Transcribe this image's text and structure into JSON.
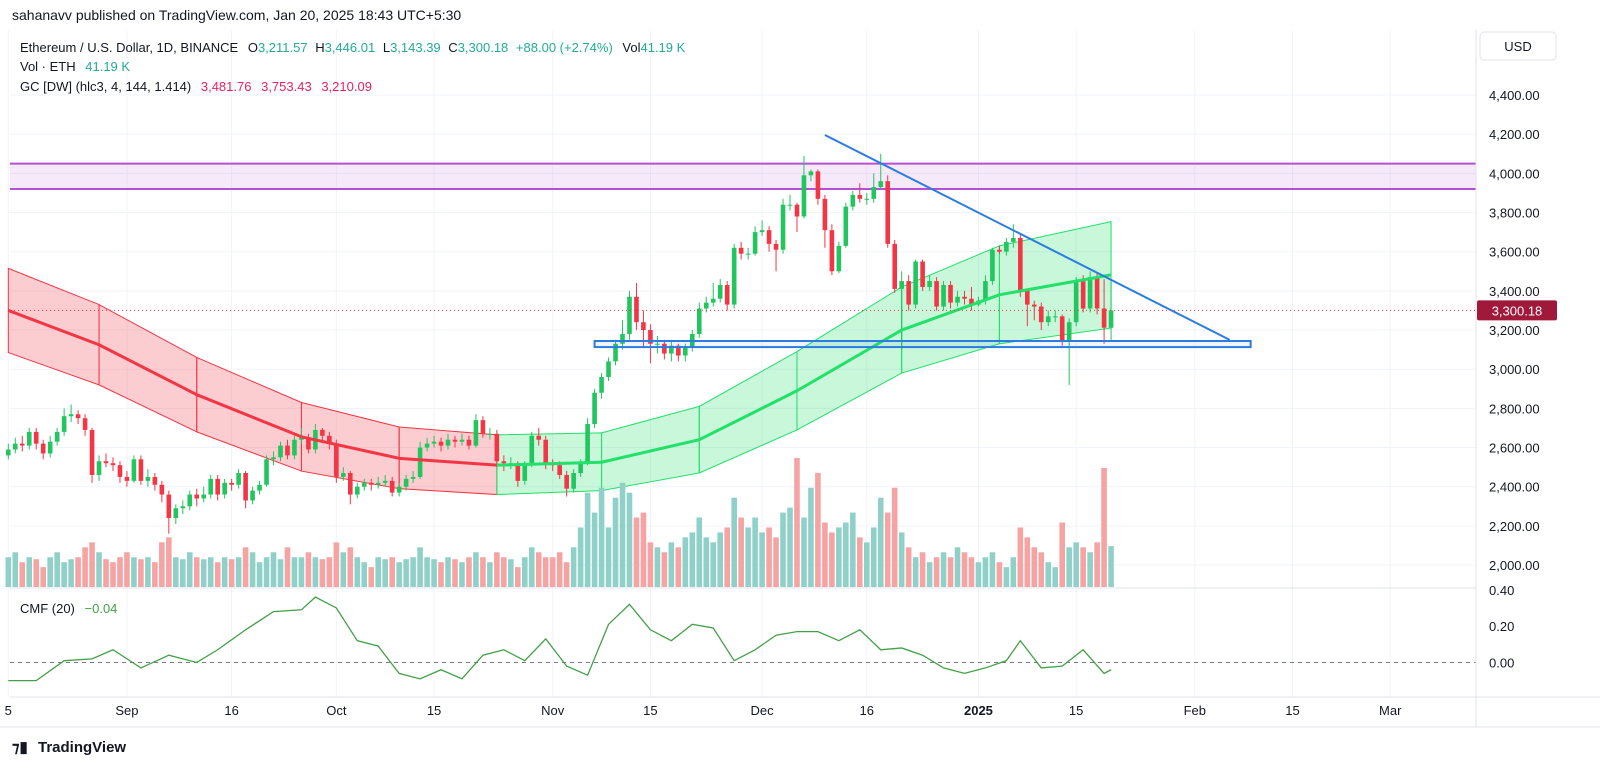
{
  "publisher": "sahanavv published on TradingView.com, Jan 20, 2025 18:43 UTC+5:30",
  "footer": "TradingView",
  "currency": "USD",
  "chart_data": {
    "type": "candlestick",
    "symbol": "Ethereum / U.S. Dollar, 1D, BINANCE",
    "ohlc_legend": [
      [
        "O",
        "3,211.57"
      ],
      [
        "H",
        "3,446.01"
      ],
      [
        "L",
        "3,143.39"
      ],
      [
        "C",
        "3,300.18"
      ]
    ],
    "change": "+88.00 (+2.74%)",
    "vol_key": "Vol",
    "vol_value": "41.19 K",
    "volume_title": "Vol · ETH",
    "volume_label": "41.19 K",
    "gc_title": "GC [DW] (hlc3, 4, 144, 1.414)",
    "gc_labels": [
      "3,481.76",
      "3,753.43",
      "3,210.09"
    ],
    "last_price_label": "3,300.18",
    "colors": {
      "up": "#22c55e",
      "down": "#f23645",
      "vol_up": "#8fd1c8",
      "vol_down": "#f5a3a3",
      "band_down": "#f23645",
      "band_up": "#22e06a",
      "zone": "#b44fd6",
      "drawing": "#2d7be0",
      "cmf": "#43a047",
      "legend_up": "#22ab94",
      "gc": "#e91e63"
    },
    "xlim": [
      0,
      210
    ],
    "xticks": [
      {
        "value": 0,
        "label": "5"
      },
      {
        "value": 17,
        "label": "Sep"
      },
      {
        "value": 32,
        "label": "16"
      },
      {
        "value": 47,
        "label": "Oct"
      },
      {
        "value": 61,
        "label": "15"
      },
      {
        "value": 78,
        "label": "Nov"
      },
      {
        "value": 92,
        "label": "15"
      },
      {
        "value": 108,
        "label": "Dec"
      },
      {
        "value": 123,
        "label": "16"
      },
      {
        "value": 139,
        "label": "2025"
      },
      {
        "value": 153,
        "label": "15"
      },
      {
        "value": 170,
        "label": "Feb"
      },
      {
        "value": 184,
        "label": "15"
      },
      {
        "value": 198,
        "label": "Mar"
      }
    ],
    "ylim": [
      1888,
      4732
    ],
    "yticks": [
      {
        "value": 2000,
        "label": "2,000.00"
      },
      {
        "value": 2200,
        "label": "2,200.00"
      },
      {
        "value": 2400,
        "label": "2,400.00"
      },
      {
        "value": 2600,
        "label": "2,600.00"
      },
      {
        "value": 2800,
        "label": "2,800.00"
      },
      {
        "value": 3000,
        "label": "3,000.00"
      },
      {
        "value": 3200,
        "label": "3,200.00"
      },
      {
        "value": 3400,
        "label": "3,400.00"
      },
      {
        "value": 3600,
        "label": "3,600.00"
      },
      {
        "value": 3800,
        "label": "3,800.00"
      },
      {
        "value": 4000,
        "label": "4,000.00"
      },
      {
        "value": 4200,
        "label": "4,200.00"
      },
      {
        "value": 4400,
        "label": "4,400.00"
      }
    ],
    "ohlc": [
      [
        2560,
        2620,
        2540,
        2590
      ],
      [
        2590,
        2650,
        2570,
        2620
      ],
      [
        2620,
        2660,
        2580,
        2610
      ],
      [
        2610,
        2700,
        2590,
        2680
      ],
      [
        2680,
        2700,
        2590,
        2620
      ],
      [
        2620,
        2640,
        2540,
        2570
      ],
      [
        2570,
        2660,
        2550,
        2630
      ],
      [
        2630,
        2700,
        2610,
        2680
      ],
      [
        2680,
        2800,
        2660,
        2760
      ],
      [
        2760,
        2820,
        2730,
        2770
      ],
      [
        2770,
        2790,
        2720,
        2750
      ],
      [
        2750,
        2770,
        2660,
        2690
      ],
      [
        2690,
        2700,
        2420,
        2460
      ],
      [
        2460,
        2560,
        2430,
        2530
      ],
      [
        2530,
        2570,
        2500,
        2520
      ],
      [
        2520,
        2550,
        2480,
        2510
      ],
      [
        2510,
        2530,
        2420,
        2450
      ],
      [
        2450,
        2480,
        2400,
        2430
      ],
      [
        2430,
        2560,
        2420,
        2540
      ],
      [
        2540,
        2560,
        2410,
        2430
      ],
      [
        2430,
        2490,
        2400,
        2450
      ],
      [
        2450,
        2470,
        2380,
        2410
      ],
      [
        2410,
        2430,
        2320,
        2360
      ],
      [
        2360,
        2380,
        2160,
        2240
      ],
      [
        2240,
        2310,
        2210,
        2290
      ],
      [
        2290,
        2330,
        2260,
        2300
      ],
      [
        2300,
        2380,
        2280,
        2360
      ],
      [
        2360,
        2390,
        2300,
        2340
      ],
      [
        2340,
        2400,
        2320,
        2360
      ],
      [
        2360,
        2460,
        2340,
        2440
      ],
      [
        2440,
        2460,
        2330,
        2360
      ],
      [
        2360,
        2440,
        2340,
        2420
      ],
      [
        2420,
        2440,
        2380,
        2410
      ],
      [
        2410,
        2490,
        2390,
        2470
      ],
      [
        2470,
        2480,
        2290,
        2330
      ],
      [
        2330,
        2400,
        2310,
        2380
      ],
      [
        2380,
        2430,
        2360,
        2410
      ],
      [
        2410,
        2560,
        2400,
        2540
      ],
      [
        2540,
        2580,
        2510,
        2550
      ],
      [
        2550,
        2630,
        2530,
        2610
      ],
      [
        2610,
        2640,
        2540,
        2560
      ],
      [
        2560,
        2660,
        2540,
        2640
      ],
      [
        2640,
        2700,
        2620,
        2650
      ],
      [
        2650,
        2670,
        2570,
        2590
      ],
      [
        2590,
        2720,
        2570,
        2690
      ],
      [
        2690,
        2700,
        2630,
        2660
      ],
      [
        2660,
        2680,
        2590,
        2620
      ],
      [
        2620,
        2640,
        2420,
        2450
      ],
      [
        2450,
        2500,
        2430,
        2470
      ],
      [
        2470,
        2480,
        2310,
        2360
      ],
      [
        2360,
        2420,
        2340,
        2400
      ],
      [
        2400,
        2440,
        2380,
        2420
      ],
      [
        2420,
        2440,
        2380,
        2410
      ],
      [
        2410,
        2450,
        2390,
        2420
      ],
      [
        2420,
        2460,
        2400,
        2430
      ],
      [
        2430,
        2450,
        2350,
        2370
      ],
      [
        2370,
        2420,
        2350,
        2400
      ],
      [
        2400,
        2460,
        2380,
        2440
      ],
      [
        2440,
        2480,
        2420,
        2450
      ],
      [
        2450,
        2630,
        2440,
        2600
      ],
      [
        2600,
        2650,
        2580,
        2620
      ],
      [
        2620,
        2660,
        2600,
        2630
      ],
      [
        2630,
        2650,
        2580,
        2610
      ],
      [
        2610,
        2670,
        2590,
        2640
      ],
      [
        2640,
        2660,
        2600,
        2630
      ],
      [
        2630,
        2670,
        2610,
        2640
      ],
      [
        2640,
        2660,
        2590,
        2610
      ],
      [
        2610,
        2770,
        2600,
        2740
      ],
      [
        2740,
        2760,
        2650,
        2670
      ],
      [
        2670,
        2700,
        2640,
        2670
      ],
      [
        2670,
        2690,
        2500,
        2530
      ],
      [
        2530,
        2560,
        2480,
        2520
      ],
      [
        2520,
        2550,
        2490,
        2520
      ],
      [
        2520,
        2530,
        2400,
        2430
      ],
      [
        2430,
        2530,
        2410,
        2510
      ],
      [
        2510,
        2680,
        2500,
        2660
      ],
      [
        2660,
        2700,
        2610,
        2640
      ],
      [
        2640,
        2660,
        2490,
        2520
      ],
      [
        2520,
        2540,
        2480,
        2510
      ],
      [
        2510,
        2530,
        2440,
        2460
      ],
      [
        2460,
        2480,
        2350,
        2390
      ],
      [
        2390,
        2490,
        2370,
        2470
      ],
      [
        2470,
        2540,
        2450,
        2520
      ],
      [
        2520,
        2750,
        2510,
        2720
      ],
      [
        2720,
        2900,
        2700,
        2880
      ],
      [
        2880,
        2980,
        2850,
        2960
      ],
      [
        2960,
        3060,
        2940,
        3040
      ],
      [
        3040,
        3150,
        3020,
        3130
      ],
      [
        3130,
        3250,
        3100,
        3180
      ],
      [
        3180,
        3400,
        3150,
        3370
      ],
      [
        3370,
        3440,
        3200,
        3240
      ],
      [
        3240,
        3300,
        3110,
        3200
      ],
      [
        3200,
        3230,
        3030,
        3130
      ],
      [
        3130,
        3170,
        3080,
        3130
      ],
      [
        3130,
        3150,
        3050,
        3080
      ],
      [
        3080,
        3150,
        3040,
        3120
      ],
      [
        3120,
        3130,
        3040,
        3070
      ],
      [
        3070,
        3130,
        3040,
        3110
      ],
      [
        3110,
        3200,
        3090,
        3180
      ],
      [
        3180,
        3340,
        3160,
        3310
      ],
      [
        3310,
        3370,
        3290,
        3340
      ],
      [
        3340,
        3440,
        3320,
        3360
      ],
      [
        3360,
        3460,
        3340,
        3430
      ],
      [
        3430,
        3450,
        3300,
        3330
      ],
      [
        3330,
        3640,
        3310,
        3620
      ],
      [
        3620,
        3650,
        3560,
        3590
      ],
      [
        3590,
        3620,
        3560,
        3590
      ],
      [
        3590,
        3730,
        3580,
        3700
      ],
      [
        3700,
        3760,
        3680,
        3710
      ],
      [
        3710,
        3730,
        3600,
        3640
      ],
      [
        3640,
        3660,
        3500,
        3610
      ],
      [
        3610,
        3870,
        3590,
        3840
      ],
      [
        3840,
        3890,
        3810,
        3840
      ],
      [
        3840,
        3850,
        3700,
        3780
      ],
      [
        3780,
        4090,
        3770,
        3990
      ],
      [
        3990,
        4020,
        3960,
        4010
      ],
      [
        4010,
        4020,
        3840,
        3870
      ],
      [
        3870,
        3890,
        3620,
        3710
      ],
      [
        3710,
        3740,
        3480,
        3500
      ],
      [
        3500,
        3650,
        3490,
        3630
      ],
      [
        3630,
        3850,
        3620,
        3830
      ],
      [
        3830,
        3910,
        3810,
        3890
      ],
      [
        3890,
        3950,
        3850,
        3870
      ],
      [
        3870,
        3900,
        3840,
        3870
      ],
      [
        3870,
        4000,
        3850,
        3930
      ],
      [
        3930,
        4100,
        3920,
        3960
      ],
      [
        3960,
        3990,
        3620,
        3640
      ],
      [
        3640,
        3660,
        3390,
        3410
      ],
      [
        3410,
        3500,
        3100,
        3450
      ],
      [
        3450,
        3480,
        3300,
        3330
      ],
      [
        3330,
        3560,
        3310,
        3550
      ],
      [
        3550,
        3560,
        3400,
        3420
      ],
      [
        3420,
        3480,
        3400,
        3450
      ],
      [
        3450,
        3470,
        3300,
        3320
      ],
      [
        3320,
        3450,
        3300,
        3430
      ],
      [
        3430,
        3450,
        3310,
        3340
      ],
      [
        3340,
        3400,
        3320,
        3370
      ],
      [
        3370,
        3400,
        3330,
        3360
      ],
      [
        3360,
        3420,
        3300,
        3330
      ],
      [
        3330,
        3370,
        3320,
        3350
      ],
      [
        3350,
        3480,
        3330,
        3450
      ],
      [
        3450,
        3620,
        3430,
        3610
      ],
      [
        3610,
        3630,
        3590,
        3600
      ],
      [
        3600,
        3670,
        3580,
        3650
      ],
      [
        3650,
        3740,
        3620,
        3670
      ],
      [
        3670,
        3690,
        3370,
        3400
      ],
      [
        3400,
        3410,
        3220,
        3330
      ],
      [
        3330,
        3350,
        3250,
        3320
      ],
      [
        3320,
        3340,
        3200,
        3240
      ],
      [
        3240,
        3300,
        3220,
        3270
      ],
      [
        3270,
        3300,
        3240,
        3270
      ],
      [
        3270,
        3280,
        3120,
        3140
      ],
      [
        3140,
        3260,
        2920,
        3240
      ],
      [
        3240,
        3470,
        3220,
        3450
      ],
      [
        3450,
        3480,
        3290,
        3310
      ],
      [
        3310,
        3500,
        3290,
        3470
      ],
      [
        3470,
        3490,
        3280,
        3310
      ],
      [
        3310,
        3460,
        3130,
        3212
      ],
      [
        3211.57,
        3446.01,
        3143.39,
        3300.18
      ]
    ],
    "volume": [
      30,
      35,
      25,
      30,
      28,
      20,
      30,
      35,
      25,
      28,
      30,
      40,
      45,
      35,
      28,
      25,
      30,
      35,
      30,
      28,
      30,
      25,
      45,
      50,
      30,
      28,
      35,
      30,
      28,
      30,
      25,
      30,
      28,
      30,
      40,
      35,
      25,
      30,
      35,
      28,
      40,
      30,
      30,
      35,
      30,
      28,
      30,
      45,
      35,
      40,
      30,
      25,
      20,
      30,
      28,
      30,
      25,
      28,
      30,
      40,
      30,
      28,
      25,
      30,
      28,
      25,
      30,
      35,
      30,
      25,
      35,
      30,
      28,
      20,
      30,
      40,
      35,
      30,
      30,
      35,
      25,
      40,
      60,
      95,
      75,
      100,
      60,
      90,
      105,
      95,
      70,
      75,
      45,
      40,
      35,
      45,
      40,
      50,
      55,
      70,
      50,
      45,
      55,
      60,
      90,
      70,
      60,
      70,
      55,
      60,
      50,
      75,
      80,
      130,
      70,
      100,
      115,
      65,
      55,
      60,
      65,
      75,
      50,
      45,
      60,
      90,
      75,
      100,
      55,
      40,
      30,
      35,
      25,
      30,
      35,
      30,
      40,
      35,
      30,
      25,
      30,
      35,
      25,
      20,
      30,
      60,
      50,
      40,
      35,
      25,
      20,
      65,
      40,
      45,
      40,
      35,
      45,
      120,
      41.19
    ],
    "channel": {
      "x": [
        0,
        13,
        27,
        42,
        56,
        70,
        85,
        99,
        113,
        128,
        142,
        158
      ],
      "mid": [
        3300,
        3125,
        2870,
        2655,
        2545,
        2510,
        2525,
        2640,
        2890,
        3200,
        3380,
        3481.76
      ],
      "upper": [
        3515,
        3330,
        3060,
        2830,
        2705,
        2665,
        2675,
        2810,
        3090,
        3420,
        3630,
        3753.43
      ],
      "lower": [
        3085,
        2920,
        2680,
        2480,
        2390,
        2360,
        2380,
        2470,
        2690,
        2980,
        3130,
        3210.09
      ]
    },
    "zone": {
      "ylim": [
        3920,
        4050
      ]
    },
    "support_box": {
      "x": [
        84,
        178
      ],
      "y": [
        3113,
        3144
      ]
    },
    "trendline": {
      "x": [
        117,
        175
      ],
      "y": [
        4196,
        3150
      ]
    },
    "cmf": {
      "title": "CMF (20)",
      "label": "−0.04",
      "ylim": [
        -0.19,
        0.41
      ],
      "yticks": [
        {
          "value": 0.4,
          "label": "0.40"
        },
        {
          "value": 0.2,
          "label": "0.20"
        },
        {
          "value": 0,
          "label": "0.00"
        }
      ],
      "x": [
        0,
        4,
        8,
        12,
        15,
        19,
        23,
        27,
        30,
        34,
        38,
        42,
        44,
        47,
        50,
        53,
        56,
        59,
        62,
        65,
        68,
        71,
        74,
        77,
        80,
        83,
        86,
        89,
        92,
        95,
        98,
        101,
        104,
        107,
        110,
        113,
        116,
        119,
        122,
        125,
        128,
        131,
        134,
        137,
        140,
        143,
        145,
        148,
        151,
        154,
        157,
        158
      ],
      "values": [
        -0.1,
        -0.1,
        0.01,
        0.02,
        0.07,
        -0.03,
        0.04,
        0,
        0.07,
        0.18,
        0.28,
        0.29,
        0.36,
        0.3,
        0.12,
        0.09,
        -0.06,
        -0.09,
        -0.04,
        -0.09,
        0.04,
        0.07,
        0.01,
        0.13,
        -0.02,
        -0.07,
        0.21,
        0.32,
        0.18,
        0.12,
        0.21,
        0.19,
        0.01,
        0.07,
        0.15,
        0.17,
        0.17,
        0.12,
        0.18,
        0.07,
        0.08,
        0.04,
        -0.03,
        -0.06,
        -0.03,
        0.01,
        0.12,
        -0.03,
        -0.02,
        0.07,
        -0.06,
        -0.04
      ]
    }
  }
}
